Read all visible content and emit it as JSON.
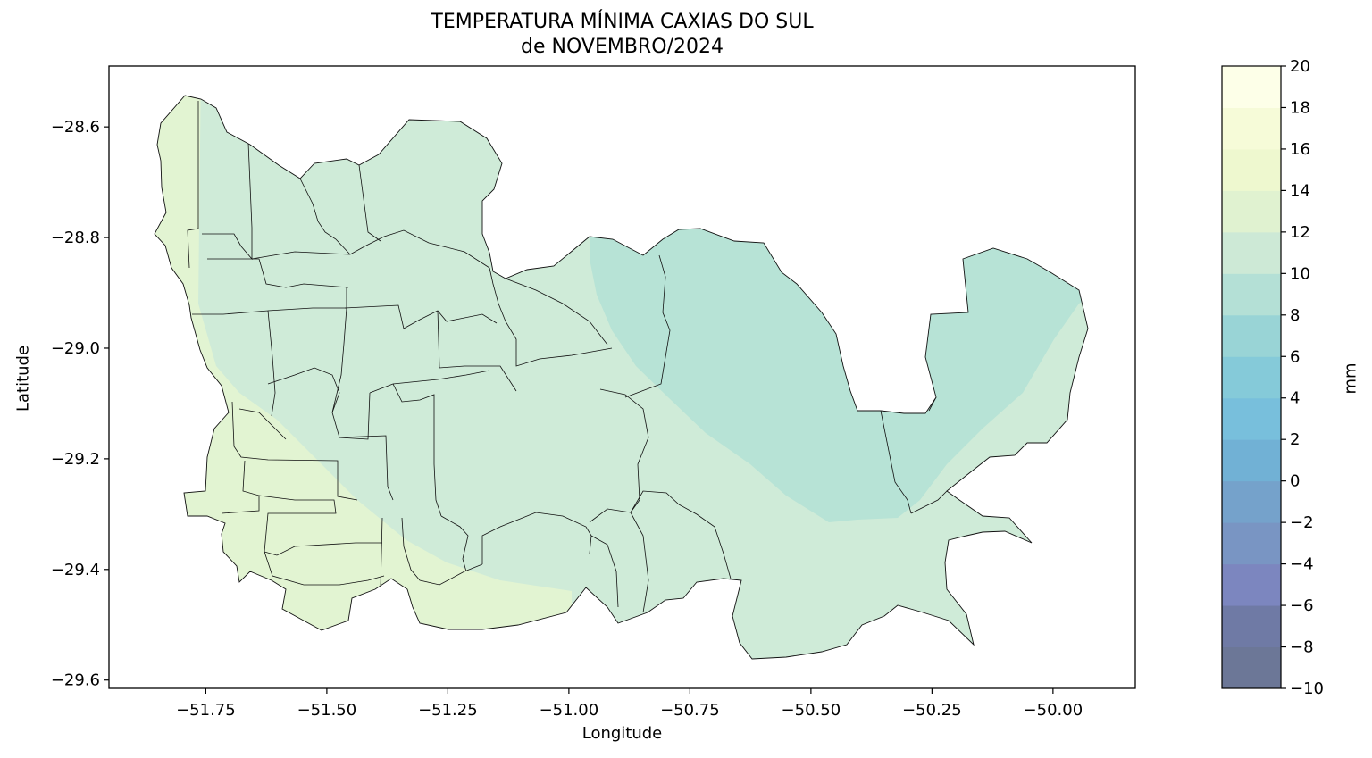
{
  "title_line1": "TEMPERATURA MÍNIMA CAXIAS DO SUL",
  "title_line2": "de NOVEMBRO/2024",
  "xlabel": "Longitude",
  "ylabel": "Latitude",
  "chart_data": {
    "type": "heatmap",
    "x_ticks": [
      "−51.75",
      "−51.50",
      "−51.25",
      "−51.00",
      "−50.75",
      "−50.50",
      "−50.25",
      "−50.00"
    ],
    "x_tick_values": [
      -51.75,
      -51.5,
      -51.25,
      -51.0,
      -50.75,
      -50.5,
      -50.25,
      -50.0
    ],
    "y_ticks": [
      "−28.6",
      "−28.8",
      "−29.0",
      "−29.2",
      "−29.4",
      "−29.6"
    ],
    "y_tick_values": [
      -28.6,
      -28.8,
      -29.0,
      -29.2,
      -29.4,
      -29.6
    ],
    "xlim": [
      -51.95,
      -49.83
    ],
    "ylim": [
      -29.615,
      -28.49
    ],
    "grid": false,
    "region_colors": {
      "12-14": "#e2f4d2",
      "10-12": "#cfebd8",
      "8-10": "#b7e3d6"
    },
    "colorbar": {
      "label": "mm",
      "ticks": [
        "−10",
        "−8",
        "−6",
        "−4",
        "−2",
        "0",
        "2",
        "4",
        "6",
        "8",
        "10",
        "12",
        "14",
        "16",
        "18",
        "20"
      ],
      "values": [
        -10,
        -8,
        -6,
        -4,
        -2,
        0,
        2,
        4,
        6,
        8,
        10,
        12,
        14,
        16,
        18,
        20
      ],
      "colors": [
        "#6c7797",
        "#6f7aa5",
        "#7c86bf",
        "#7995c3",
        "#75a2cb",
        "#71b1d5",
        "#78bfdc",
        "#85cad9",
        "#99d4d6",
        "#b4e0d6",
        "#cde9d6",
        "#e0f2d0",
        "#eef8cf",
        "#f6fbd8",
        "#fdffe8"
      ]
    }
  }
}
